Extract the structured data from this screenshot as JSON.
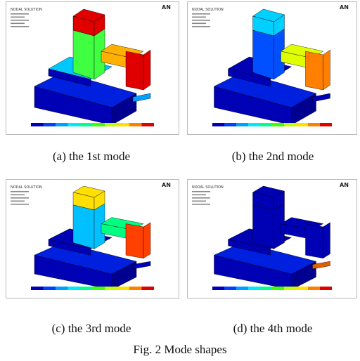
{
  "figure": {
    "panels": [
      {
        "header": "NODAL SOLUTION",
        "logo": "AN",
        "caption": "(a) the 1st mode"
      },
      {
        "header": "NODAL SOLUTION",
        "logo": "AN",
        "caption": "(b) the 2nd mode"
      },
      {
        "header": "NODAL SOLUTION",
        "logo": "AN",
        "caption": "(c) the 3rd mode"
      },
      {
        "header": "NODAL SOLUTION",
        "logo": "AN",
        "caption": "(d) the 4th mode"
      }
    ],
    "caption": "Fig. 2 Mode shapes"
  }
}
